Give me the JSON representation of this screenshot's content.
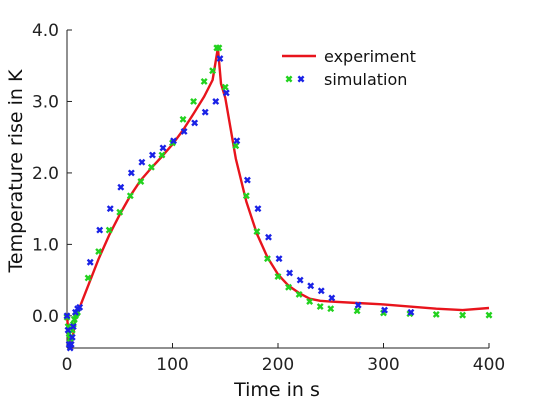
{
  "chart_data": {
    "type": "line",
    "xlabel": "Time in s",
    "ylabel": "Temperature rise in K",
    "xlim": [
      0,
      400
    ],
    "ylim": [
      -0.45,
      4.0
    ],
    "xticks": [
      "0",
      "100",
      "200",
      "300",
      "400"
    ],
    "yticks": [
      "0.0",
      "1.0",
      "2.0",
      "3.0",
      "4.0"
    ],
    "grid": false,
    "legend_position": "top-right",
    "legend": [
      {
        "label": "experiment",
        "marker": "line",
        "color": "#e8141c"
      },
      {
        "label": "simulation",
        "marker": "cross",
        "color": "#22d21e",
        "color2": "#1a22e6"
      }
    ],
    "series": [
      {
        "color": "#e8141c",
        "style": "line",
        "x": [
          0,
          2,
          4,
          6,
          8,
          10,
          12,
          20,
          30,
          40,
          50,
          60,
          70,
          80,
          90,
          100,
          110,
          120,
          130,
          138,
          143,
          146,
          150,
          160,
          170,
          180,
          190,
          200,
          210,
          220,
          230,
          240,
          250,
          275,
          300,
          325,
          350,
          375,
          400
        ],
        "y": [
          0.0,
          -0.35,
          -0.45,
          -0.25,
          -0.05,
          0.05,
          0.12,
          0.42,
          0.8,
          1.13,
          1.42,
          1.68,
          1.9,
          2.07,
          2.23,
          2.4,
          2.6,
          2.83,
          3.07,
          3.3,
          3.75,
          3.25,
          3.05,
          2.2,
          1.6,
          1.15,
          0.82,
          0.58,
          0.42,
          0.32,
          0.24,
          0.21,
          0.2,
          0.18,
          0.16,
          0.13,
          0.1,
          0.08,
          0.11
        ]
      },
      {
        "color": "#22d21e",
        "style": "cross",
        "x": [
          0,
          1,
          2,
          3,
          4,
          5,
          6,
          7,
          8,
          9,
          10,
          20,
          30,
          40,
          50,
          60,
          70,
          80,
          90,
          100,
          110,
          120,
          130,
          138,
          142,
          144,
          150,
          160,
          170,
          180,
          190,
          200,
          210,
          220,
          230,
          240,
          250,
          275,
          300,
          325,
          350,
          375,
          400
        ],
        "y": [
          -0.02,
          -0.15,
          -0.25,
          -0.32,
          -0.3,
          -0.2,
          -0.12,
          -0.05,
          0.0,
          0.03,
          0.05,
          0.53,
          0.9,
          1.2,
          1.45,
          1.68,
          1.88,
          2.08,
          2.25,
          2.42,
          2.75,
          3.0,
          3.28,
          3.43,
          3.75,
          3.75,
          3.2,
          2.38,
          1.68,
          1.18,
          0.8,
          0.55,
          0.4,
          0.3,
          0.2,
          0.13,
          0.1,
          0.07,
          0.04,
          0.03,
          0.02,
          0.01,
          0.01
        ]
      },
      {
        "color": "#1a22e6",
        "style": "cross",
        "x": [
          0,
          1,
          2,
          3,
          4,
          5,
          6,
          8,
          10,
          12,
          22,
          31,
          41,
          51,
          61,
          71,
          81,
          91,
          101,
          111,
          121,
          131,
          141,
          145,
          151,
          161,
          171,
          181,
          191,
          201,
          211,
          221,
          231,
          241,
          251,
          276,
          301,
          326
        ],
        "y": [
          0.0,
          -0.2,
          -0.4,
          -0.45,
          -0.4,
          -0.3,
          -0.15,
          0.05,
          0.1,
          0.12,
          0.75,
          1.2,
          1.5,
          1.8,
          2.0,
          2.15,
          2.25,
          2.35,
          2.45,
          2.58,
          2.7,
          2.85,
          3.0,
          3.6,
          3.12,
          2.45,
          1.9,
          1.5,
          1.1,
          0.8,
          0.6,
          0.5,
          0.42,
          0.35,
          0.25,
          0.15,
          0.08,
          0.05
        ]
      }
    ]
  }
}
